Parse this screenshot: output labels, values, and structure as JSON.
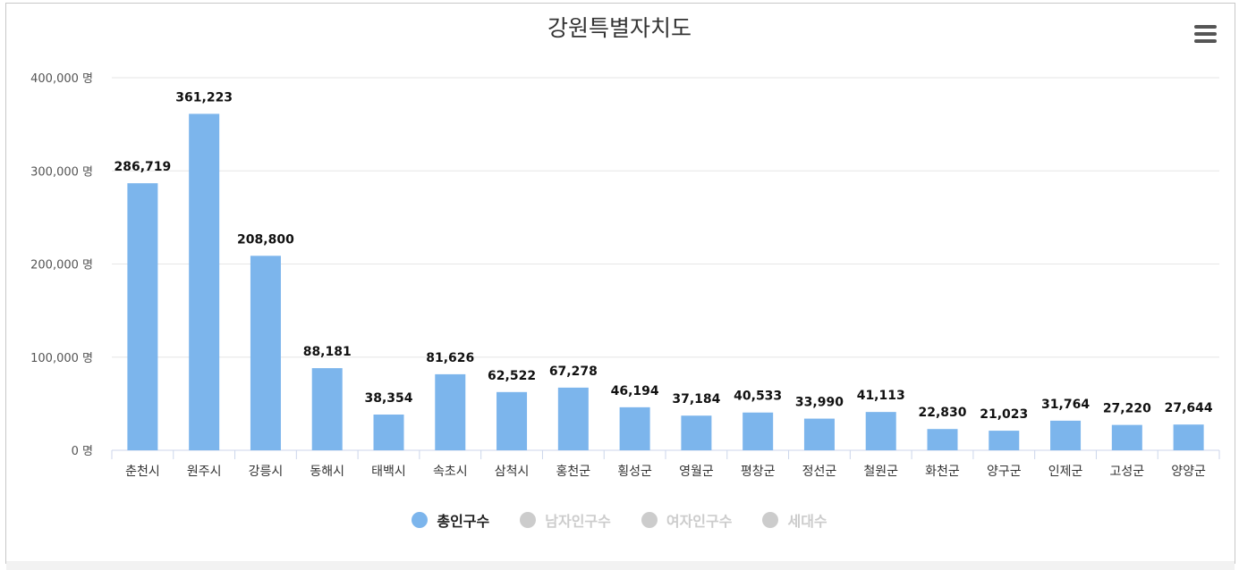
{
  "chart_data": {
    "type": "bar",
    "title": "강원특별자치도",
    "categories": [
      "춘천시",
      "원주시",
      "강릉시",
      "동해시",
      "태백시",
      "속초시",
      "삼척시",
      "홍천군",
      "횡성군",
      "영월군",
      "평창군",
      "정선군",
      "철원군",
      "화천군",
      "양구군",
      "인제군",
      "고성군",
      "양양군"
    ],
    "series": [
      {
        "name": "총인구수",
        "color": "#7cb5ec",
        "visible": true,
        "values": [
          286719,
          361223,
          208800,
          88181,
          38354,
          81626,
          62522,
          67278,
          46194,
          37184,
          40533,
          33990,
          41113,
          22830,
          21023,
          31764,
          27220,
          27644
        ],
        "labels": [
          "286,719",
          "361,223",
          "208,800",
          "88,181",
          "38,354",
          "81,626",
          "62,522",
          "67,278",
          "46,194",
          "37,184",
          "40,533",
          "33,990",
          "41,113",
          "22,830",
          "21,023",
          "31,764",
          "27,220",
          "27,644"
        ]
      },
      {
        "name": "남자인구수",
        "color": "#cccccc",
        "visible": false
      },
      {
        "name": "여자인구수",
        "color": "#cccccc",
        "visible": false
      },
      {
        "name": "세대수",
        "color": "#cccccc",
        "visible": false
      }
    ],
    "ylim": [
      0,
      400000
    ],
    "yticks": [
      0,
      100000,
      200000,
      300000,
      400000
    ],
    "ytick_labels": [
      "0 명",
      "100,000 명",
      "200,000 명",
      "300,000 명",
      "400,000 명"
    ],
    "grid": true,
    "legend_position": "bottom-center"
  },
  "colors": {
    "bar": "#7cb5ec",
    "grid": "#e6e6e6",
    "axis": "#ccd6eb",
    "legend_active_text": "#222222",
    "legend_inactive": "#cccccc"
  },
  "icons": {
    "menu": "hamburger-menu-icon"
  }
}
